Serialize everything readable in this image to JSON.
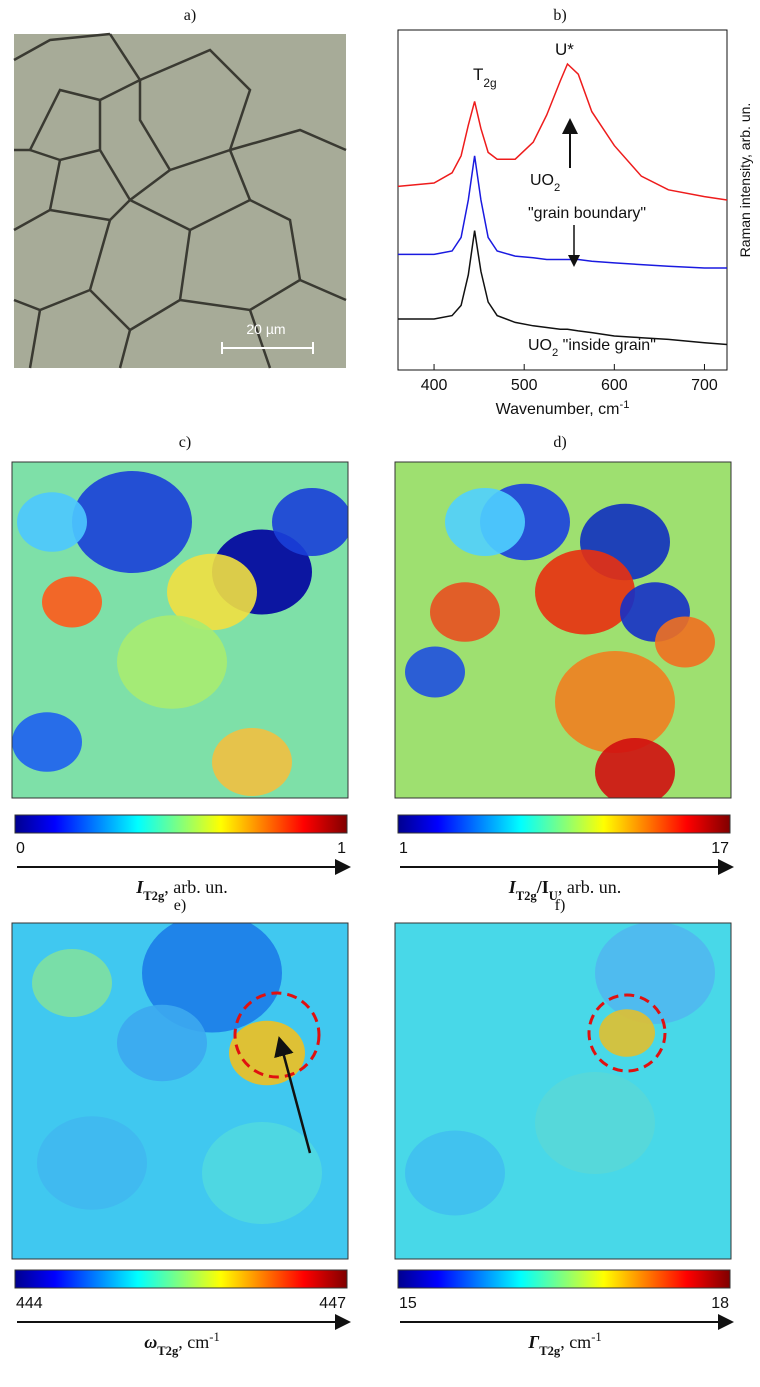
{
  "panels": {
    "a": {
      "label": "a)",
      "scalebar": "20 µm"
    },
    "b": {
      "label": "b)"
    }
  },
  "chart_data": {
    "type": "line",
    "x_label": [
      {
        "text": "Wavenumber, cm"
      },
      {
        "text": "-1",
        "pos": "sup"
      }
    ],
    "y_label": "Raman intensity, arb. un.",
    "xlim": [
      360,
      725
    ],
    "xticks": [
      400,
      500,
      600,
      700
    ],
    "ylim": [
      0,
      10
    ],
    "x": [
      360,
      400,
      420,
      430,
      438,
      445,
      452,
      460,
      470,
      490,
      510,
      525,
      540,
      548,
      560,
      575,
      600,
      630,
      660,
      700,
      725
    ],
    "series": [
      {
        "color": "#ee1c1c",
        "values": [
          5.4,
          5.5,
          5.8,
          6.3,
          7.2,
          7.9,
          7.1,
          6.4,
          6.2,
          6.2,
          6.7,
          7.5,
          8.5,
          9.0,
          8.7,
          7.6,
          6.6,
          5.7,
          5.3,
          5.1,
          5.0
        ]
      },
      {
        "color": "#1a1ae0",
        "values": [
          3.4,
          3.4,
          3.5,
          3.9,
          5.0,
          6.3,
          5.0,
          3.9,
          3.5,
          3.35,
          3.3,
          3.25,
          3.25,
          3.25,
          3.25,
          3.2,
          3.15,
          3.1,
          3.05,
          3.0,
          3.0
        ]
      },
      {
        "color": "#111111",
        "values": [
          1.5,
          1.5,
          1.6,
          1.9,
          2.8,
          4.1,
          2.9,
          2.0,
          1.6,
          1.4,
          1.3,
          1.25,
          1.2,
          1.2,
          1.15,
          1.1,
          1.0,
          0.95,
          0.9,
          0.8,
          0.75
        ]
      }
    ],
    "annotations": {
      "t2g": [
        {
          "text": "T"
        },
        {
          "text": "2g",
          "pos": "sub"
        }
      ],
      "u_star": [
        {
          "text": "U*"
        }
      ],
      "uo2": [
        {
          "text": "UO"
        },
        {
          "text": "2",
          "pos": "sub"
        }
      ],
      "grain_boundary": [
        {
          "text": "\"grain boundary\""
        }
      ],
      "inside_grain": [
        {
          "text": "UO"
        },
        {
          "text": "2",
          "pos": "sub"
        },
        {
          "text": " \"inside grain\""
        }
      ]
    }
  },
  "maps": [
    {
      "label": "c)",
      "min": 0,
      "max": 1,
      "quantity": [
        {
          "text": "I",
          "style": "bi"
        },
        {
          "text": "T2g",
          "pos": "sub",
          "style": "b"
        },
        {
          "text": ", arb. un."
        }
      ]
    },
    {
      "label": "d)",
      "min": 1,
      "max": 17,
      "quantity": [
        {
          "text": "I",
          "style": "bi"
        },
        {
          "text": "T2g",
          "pos": "sub",
          "style": "b"
        },
        {
          "text": "/I",
          "style": "b"
        },
        {
          "text": "U",
          "pos": "sub",
          "style": "b"
        },
        {
          "text": ", arb. un."
        }
      ]
    },
    {
      "label": "e)",
      "min": 444,
      "max": 447,
      "quantity": [
        {
          "text": "ω",
          "style": "bi"
        },
        {
          "text": "T2g",
          "pos": "sub",
          "style": "b"
        },
        {
          "text": ", cm"
        },
        {
          "text": "-1",
          "pos": "sup"
        }
      ]
    },
    {
      "label": "f)",
      "min": 15,
      "max": 18,
      "quantity": [
        {
          "text": "Γ",
          "style": "bi"
        },
        {
          "text": "T2g",
          "pos": "sub",
          "style": "b"
        },
        {
          "text": ", cm"
        },
        {
          "text": "-1",
          "pos": "sup"
        }
      ]
    }
  ]
}
